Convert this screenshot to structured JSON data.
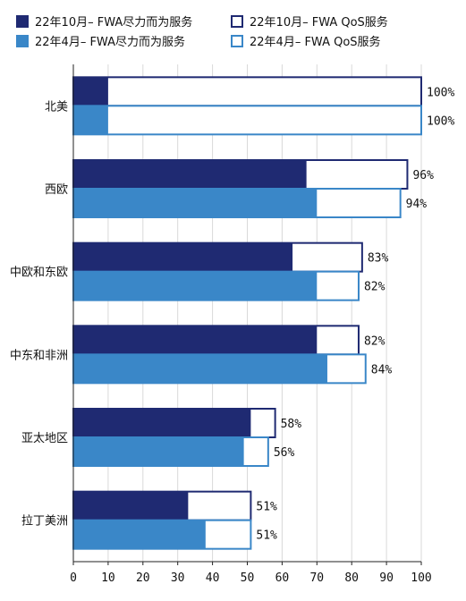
{
  "chart_data": {
    "type": "bar",
    "orientation": "horizontal",
    "layout": "overlay-stacked",
    "title": "",
    "xlabel": "",
    "ylabel": "",
    "xlim": [
      0,
      100
    ],
    "xticks": [
      0,
      10,
      20,
      30,
      40,
      50,
      60,
      70,
      80,
      90,
      100
    ],
    "grid": "vertical",
    "legend_position": "top",
    "categories": [
      "北美",
      "西欧",
      "中欧和东欧",
      "中东和非洲",
      "亚太地区",
      "拉丁美洲"
    ],
    "series": [
      {
        "name": "22年10月– FWA尽力而为服务",
        "values": [
          10,
          67,
          63,
          70,
          51,
          33
        ],
        "color": "#1f2a72",
        "style": "filled"
      },
      {
        "name": "22年10月– FWA QoS服务",
        "values": [
          100,
          96,
          83,
          82,
          58,
          51
        ],
        "color": "#1f2a72",
        "style": "outline"
      },
      {
        "name": "22年4月– FWA尽力而为服务",
        "values": [
          10,
          70,
          70,
          73,
          49,
          38
        ],
        "color": "#3a87c8",
        "style": "filled"
      },
      {
        "name": "22年4月– FWA QoS服务",
        "values": [
          100,
          94,
          82,
          84,
          56,
          51
        ],
        "color": "#3a87c8",
        "style": "outline"
      }
    ],
    "data_labels": [
      [
        "100%",
        "100%"
      ],
      [
        "96%",
        "94%"
      ],
      [
        "83%",
        "82%"
      ],
      [
        "82%",
        "84%"
      ],
      [
        "58%",
        "56%"
      ],
      [
        "51%",
        "51%"
      ]
    ]
  }
}
